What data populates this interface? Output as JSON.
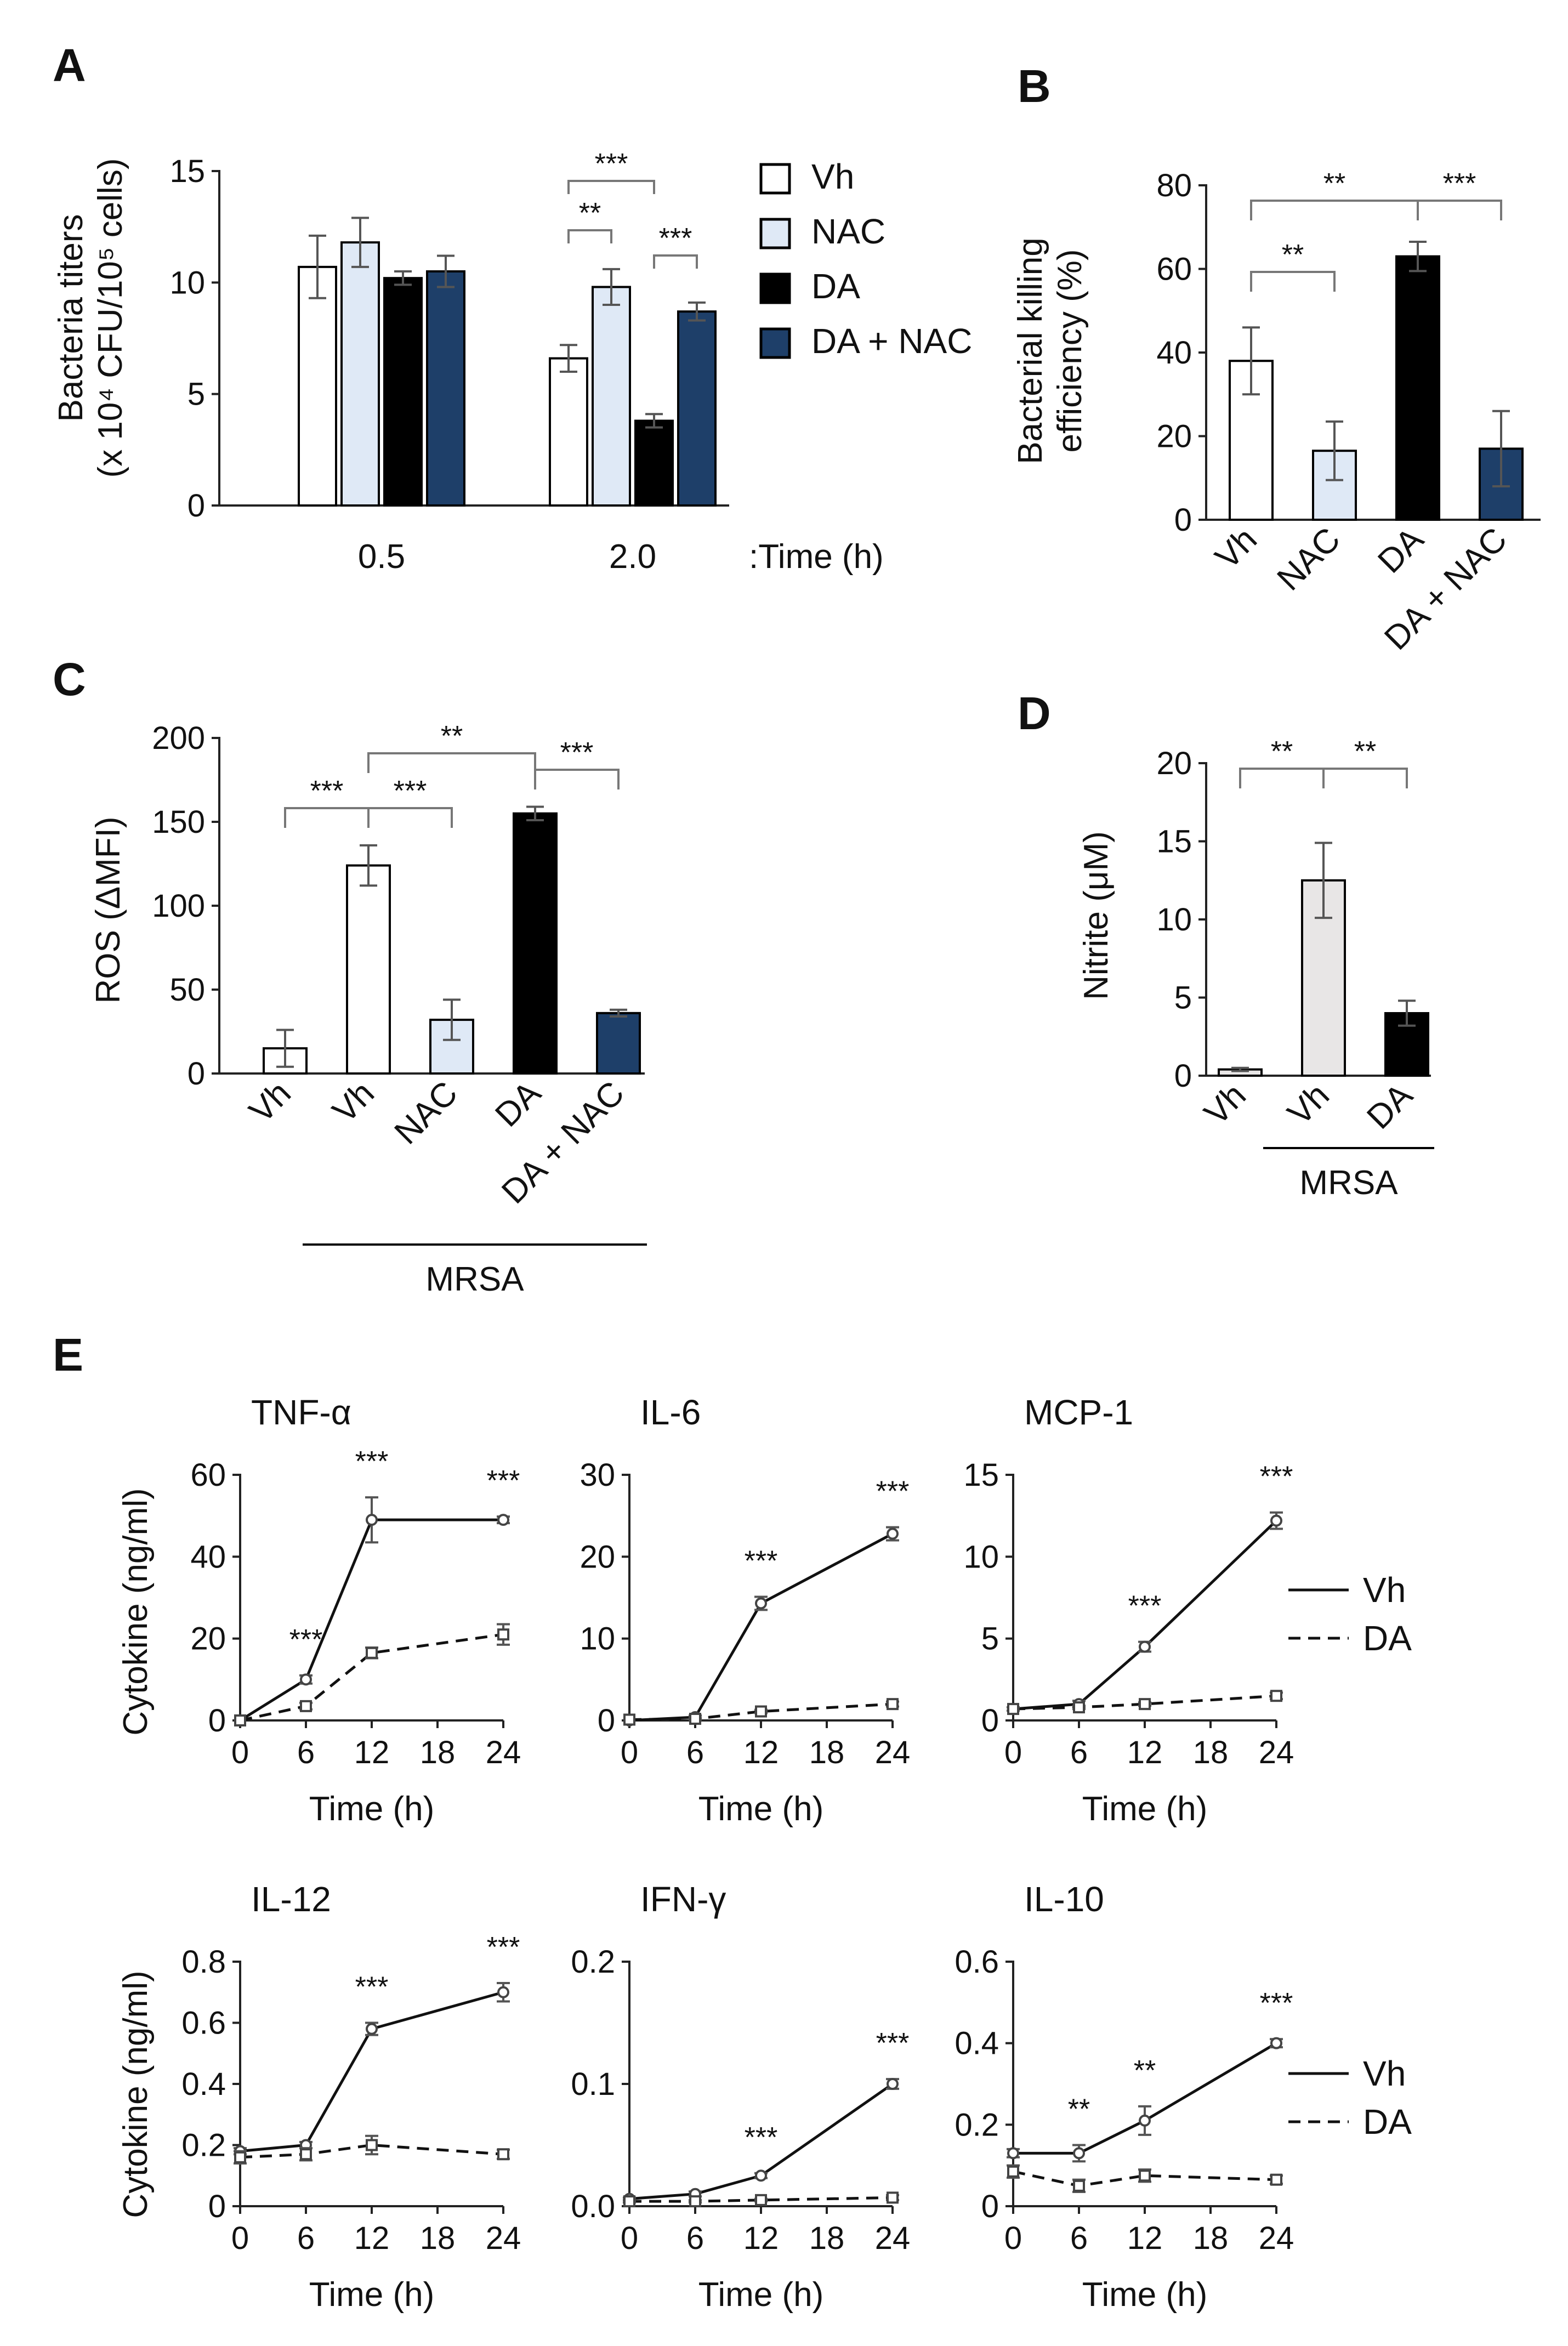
{
  "colors": {
    "vh": "#ffffff",
    "nac": "#dfe9f6",
    "da": "#000000",
    "da_nac": "#1e3f69",
    "vh_gray": "#e8e6e6",
    "axis": "#222222",
    "err": "#555555",
    "bracket": "#777777"
  },
  "chart_data": [
    {
      "panel": "A",
      "type": "bar",
      "ylabel_line1": "Bacteria titers",
      "ylabel_line2": "(x 10⁴ CFU/10⁵ cells)",
      "xlabel": ":Time (h)",
      "categories": [
        "0.5",
        "2.0"
      ],
      "ylim": [
        0,
        15
      ],
      "yticks": [
        "0",
        "5",
        "10",
        "15"
      ],
      "series": [
        {
          "name": "Vh",
          "color_key": "vh",
          "values": [
            10.7,
            6.6
          ],
          "errors": [
            1.4,
            0.6
          ]
        },
        {
          "name": "NAC",
          "color_key": "nac",
          "values": [
            11.8,
            9.8
          ],
          "errors": [
            1.1,
            0.8
          ]
        },
        {
          "name": "DA",
          "color_key": "da",
          "values": [
            10.2,
            3.8
          ],
          "errors": [
            0.3,
            0.3
          ]
        },
        {
          "name": "DA + NAC",
          "color_key": "da_nac",
          "values": [
            10.5,
            8.7
          ],
          "errors": [
            0.7,
            0.4
          ]
        }
      ],
      "legend": [
        "Vh",
        "NAC",
        "DA",
        "DA + NAC"
      ],
      "significance": [
        {
          "from": "Vh",
          "to": "NAC",
          "group": 1,
          "label": "**"
        },
        {
          "from": "Vh",
          "to": "DA",
          "group": 1,
          "label": "***"
        },
        {
          "from": "DA",
          "to": "DA + NAC",
          "group": 1,
          "label": "***"
        }
      ]
    },
    {
      "panel": "B",
      "type": "bar",
      "ylabel_line1": "Bacterial killing",
      "ylabel_line2": "efficiency (%)",
      "categories": [
        "Vh",
        "NAC",
        "DA",
        "DA + NAC"
      ],
      "colors": [
        "vh",
        "nac",
        "da",
        "da_nac"
      ],
      "values": [
        38,
        16.5,
        63,
        17
      ],
      "errors": [
        8,
        7,
        3.5,
        9
      ],
      "ylim": [
        0,
        80
      ],
      "yticks": [
        "0",
        "20",
        "40",
        "60",
        "80"
      ],
      "significance": [
        {
          "from": 0,
          "to": 1,
          "label": "**"
        },
        {
          "from": 0,
          "to": 2,
          "label": "**"
        },
        {
          "from": 2,
          "to": 3,
          "label": "***"
        }
      ]
    },
    {
      "panel": "C",
      "type": "bar",
      "ylabel": "ROS (ΔMFI)",
      "categories": [
        "Vh",
        "Vh",
        "NAC",
        "DA",
        "DA + NAC"
      ],
      "colors": [
        "vh",
        "vh",
        "nac",
        "da",
        "da_nac"
      ],
      "values": [
        15,
        124,
        32,
        155,
        36
      ],
      "errors": [
        11,
        12,
        12,
        4,
        2
      ],
      "ylim": [
        0,
        200
      ],
      "yticks": [
        "0",
        "50",
        "100",
        "150",
        "200"
      ],
      "group_label": "MRSA",
      "group_from": 1,
      "group_to": 4,
      "significance": [
        {
          "from": 0,
          "to": 1,
          "label": "***"
        },
        {
          "from": 1,
          "to": 2,
          "label": "***"
        },
        {
          "from": 1,
          "to": 3,
          "label": "**"
        },
        {
          "from": 3,
          "to": 4,
          "label": "***"
        }
      ]
    },
    {
      "panel": "D",
      "type": "bar",
      "ylabel": "Nitrite (μM)",
      "categories": [
        "Vh",
        "Vh",
        "DA"
      ],
      "colors": [
        "vh_gray",
        "vh_gray",
        "da"
      ],
      "values": [
        0.4,
        12.5,
        4
      ],
      "errors": [
        0.1,
        2.4,
        0.8
      ],
      "ylim": [
        0,
        20
      ],
      "yticks": [
        "0",
        "5",
        "10",
        "15",
        "20"
      ],
      "group_label": "MRSA",
      "group_from": 1,
      "group_to": 2,
      "significance": [
        {
          "from": 0,
          "to": 1,
          "label": "**"
        },
        {
          "from": 1,
          "to": 2,
          "label": "**"
        }
      ]
    },
    {
      "panel": "E",
      "type": "line",
      "xlabel": "Time (h)",
      "ylabel": "Cytokine (ng/ml)",
      "x": [
        0,
        6,
        12,
        24
      ],
      "xticks": [
        "0",
        "6",
        "12",
        "18",
        "24"
      ],
      "legend": [
        "Vh",
        "DA"
      ],
      "subplots": [
        {
          "title": "TNF-α",
          "ylim": [
            0,
            60
          ],
          "yticks": [
            "0",
            "20",
            "40",
            "60"
          ],
          "series": [
            {
              "name": "Vh",
              "values": [
                0,
                10,
                49,
                49
              ],
              "errors": [
                0,
                1,
                5.5,
                0.8
              ]
            },
            {
              "name": "DA",
              "values": [
                0,
                3.5,
                16.5,
                21
              ],
              "errors": [
                0,
                0.8,
                1.3,
                2.5
              ]
            }
          ],
          "stars": [
            {
              "x": 6,
              "label": "***"
            },
            {
              "x": 12,
              "label": "***"
            },
            {
              "x": 24,
              "label": "***"
            }
          ]
        },
        {
          "title": "IL-6",
          "ylim": [
            0,
            30
          ],
          "yticks": [
            "0",
            "10",
            "20",
            "30"
          ],
          "series": [
            {
              "name": "Vh",
              "values": [
                0,
                0.4,
                14.3,
                22.8
              ],
              "errors": [
                0,
                0.2,
                0.8,
                0.8
              ]
            },
            {
              "name": "DA",
              "values": [
                0.1,
                0.2,
                1.1,
                2
              ],
              "errors": [
                0,
                0.1,
                0.2,
                0.3
              ]
            }
          ],
          "stars": [
            {
              "x": 12,
              "label": "***"
            },
            {
              "x": 24,
              "label": "***"
            }
          ]
        },
        {
          "title": "MCP-1",
          "ylim": [
            0,
            15
          ],
          "yticks": [
            "0",
            "5",
            "10",
            "15"
          ],
          "series": [
            {
              "name": "Vh",
              "values": [
                0.7,
                1,
                4.5,
                12.2
              ],
              "errors": [
                0.1,
                0.2,
                0.3,
                0.5
              ]
            },
            {
              "name": "DA",
              "values": [
                0.7,
                0.8,
                1,
                1.5
              ],
              "errors": [
                0.1,
                0.1,
                0.1,
                0.2
              ]
            }
          ],
          "stars": [
            {
              "x": 12,
              "label": "***"
            },
            {
              "x": 24,
              "label": "***"
            }
          ]
        },
        {
          "title": "IL-12",
          "ylim": [
            0,
            0.8
          ],
          "yticks": [
            "0",
            "0.2",
            "0.4",
            "0.6",
            "0.8"
          ],
          "series": [
            {
              "name": "Vh",
              "values": [
                0.18,
                0.2,
                0.58,
                0.7
              ],
              "errors": [
                0.01,
                0.01,
                0.02,
                0.03
              ]
            },
            {
              "name": "DA",
              "values": [
                0.16,
                0.17,
                0.2,
                0.17
              ],
              "errors": [
                0.02,
                0.02,
                0.03,
                0.015
              ]
            }
          ],
          "stars": [
            {
              "x": 12,
              "label": "***"
            },
            {
              "x": 24,
              "label": "***"
            }
          ]
        },
        {
          "title": "IFN-γ",
          "ylim": [
            0,
            0.2
          ],
          "yticks": [
            "0.0",
            "0.1",
            "0.2"
          ],
          "series": [
            {
              "name": "Vh",
              "values": [
                0.006,
                0.01,
                0.025,
                0.1
              ],
              "errors": [
                0.001,
                0.002,
                0.002,
                0.004
              ]
            },
            {
              "name": "DA",
              "values": [
                0.004,
                0.004,
                0.005,
                0.007
              ],
              "errors": [
                0.001,
                0.001,
                0.001,
                0.002
              ]
            }
          ],
          "stars": [
            {
              "x": 12,
              "label": "***"
            },
            {
              "x": 24,
              "label": "***"
            }
          ]
        },
        {
          "title": "IL-10",
          "ylim": [
            0,
            0.6
          ],
          "yticks": [
            "0",
            "0.2",
            "0.4",
            "0.6"
          ],
          "series": [
            {
              "name": "Vh",
              "values": [
                0.13,
                0.13,
                0.21,
                0.4
              ],
              "errors": [
                0.01,
                0.02,
                0.035,
                0.01
              ]
            },
            {
              "name": "DA",
              "values": [
                0.085,
                0.05,
                0.075,
                0.065
              ],
              "errors": [
                0.015,
                0.015,
                0.015,
                0.01
              ]
            }
          ],
          "stars": [
            {
              "x": 6,
              "label": "**"
            },
            {
              "x": 12,
              "label": "**"
            },
            {
              "x": 24,
              "label": "***"
            }
          ]
        }
      ]
    }
  ]
}
